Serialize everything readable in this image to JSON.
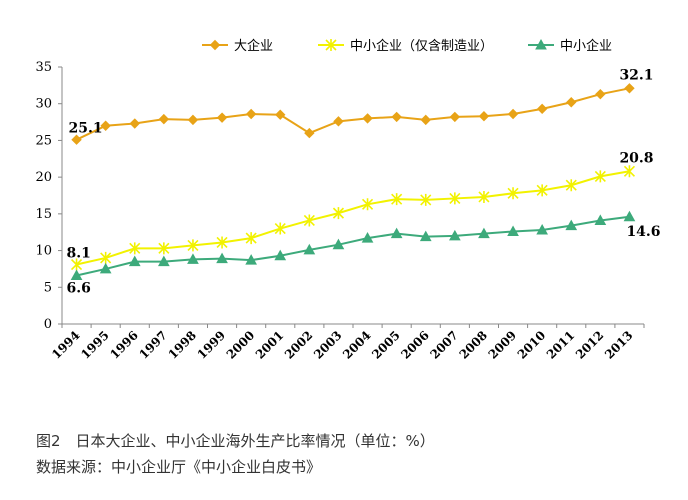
{
  "chart_data": {
    "type": "line",
    "title": "",
    "xlabel": "",
    "ylabel": "",
    "ylim": [
      0,
      35
    ],
    "yticks": [
      0,
      5,
      10,
      15,
      20,
      25,
      30,
      35
    ],
    "grid": false,
    "legend_position": "top",
    "x": [
      "1994",
      "1995",
      "1996",
      "1997",
      "1998",
      "1999",
      "2000",
      "2001",
      "2002",
      "2003",
      "2004",
      "2005",
      "2006",
      "2007",
      "2008",
      "2009",
      "2010",
      "2011",
      "2012",
      "2013"
    ],
    "series": [
      {
        "name": "大企业",
        "color": "#E8A317",
        "marker": "diamond",
        "values": [
          25.1,
          27.0,
          27.3,
          27.9,
          27.8,
          28.1,
          28.6,
          28.5,
          26.0,
          27.6,
          28.0,
          28.2,
          27.8,
          28.2,
          28.3,
          28.6,
          29.3,
          30.2,
          31.3,
          32.1
        ]
      },
      {
        "name": "中小企业（仅含制造业）",
        "color": "#F2F200",
        "marker": "star",
        "values": [
          8.1,
          9.0,
          10.3,
          10.3,
          10.7,
          11.1,
          11.7,
          13.0,
          14.1,
          15.1,
          16.3,
          17.0,
          16.9,
          17.1,
          17.3,
          17.8,
          18.2,
          18.9,
          20.1,
          20.8
        ]
      },
      {
        "name": "中小企业",
        "color": "#3DAA7B",
        "marker": "triangle",
        "values": [
          6.6,
          7.5,
          8.5,
          8.5,
          8.8,
          8.9,
          8.7,
          9.3,
          10.1,
          10.8,
          11.7,
          12.3,
          11.9,
          12.0,
          12.3,
          12.6,
          12.8,
          13.4,
          14.1,
          14.6
        ]
      }
    ],
    "annotations": [
      {
        "series": 0,
        "index": 0,
        "text": "25.1"
      },
      {
        "series": 0,
        "index": 19,
        "text": "32.1"
      },
      {
        "series": 1,
        "index": 0,
        "text": "8.1"
      },
      {
        "series": 1,
        "index": 19,
        "text": "20.8"
      },
      {
        "series": 2,
        "index": 0,
        "text": "6.6"
      },
      {
        "series": 2,
        "index": 19,
        "text": "14.6"
      }
    ]
  },
  "caption": {
    "figure": "图2　日本大企业、中小企业海外生产比率情况（单位：%）",
    "source": "数据来源：中小企业厅《中小企业白皮书》"
  }
}
